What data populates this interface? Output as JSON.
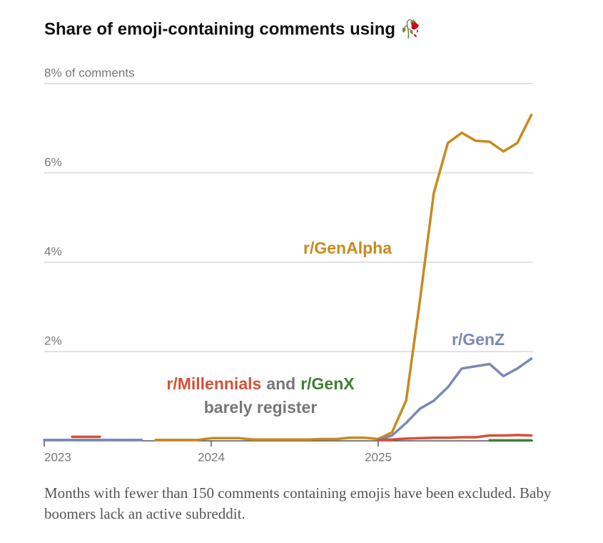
{
  "chart_data": {
    "type": "line",
    "title": "Share of emoji-containing comments using 🥀",
    "x": [
      2023,
      2023.083,
      2023.167,
      2023.25,
      2023.333,
      2023.417,
      2023.5,
      2023.583,
      2023.667,
      2023.75,
      2023.833,
      2023.917,
      2024,
      2024.083,
      2024.167,
      2024.25,
      2024.333,
      2024.417,
      2024.5,
      2024.583,
      2024.667,
      2024.75,
      2024.833,
      2024.917,
      2025,
      2025.083,
      2025.167,
      2025.25,
      2025.333,
      2025.417,
      2025.5,
      2025.583,
      2025.667,
      2025.75,
      2025.833,
      2025.917
    ],
    "xlim": [
      2023,
      2025.917
    ],
    "xticks": [
      2023,
      2024,
      2025
    ],
    "ylim": [
      0,
      8
    ],
    "yticks": [
      {
        "value": 2,
        "label": "2%"
      },
      {
        "value": 4,
        "label": "4%"
      },
      {
        "value": 6,
        "label": "6%"
      },
      {
        "value": 8,
        "label": "8% of comments"
      }
    ],
    "grid": true,
    "series": [
      {
        "name": "r/GenAlpha",
        "color": "#c88a1e",
        "values": [
          null,
          null,
          null,
          null,
          null,
          null,
          null,
          null,
          0.02,
          0.02,
          0.02,
          0.02,
          0.06,
          0.06,
          0.06,
          0.03,
          0.03,
          0.03,
          0.03,
          0.03,
          0.04,
          0.04,
          0.07,
          0.07,
          0.04,
          0.19,
          0.9,
          3.15,
          5.55,
          6.67,
          6.9,
          6.72,
          6.7,
          6.48,
          6.67,
          7.3
        ]
      },
      {
        "name": "r/GenZ",
        "color": "#7b8ab3",
        "values": [
          0.02,
          0.02,
          0.02,
          0.02,
          0.02,
          0.02,
          0.02,
          0.02,
          null,
          null,
          null,
          null,
          null,
          null,
          null,
          null,
          null,
          null,
          null,
          null,
          null,
          null,
          null,
          null,
          0.02,
          0.12,
          0.4,
          0.72,
          0.9,
          1.2,
          1.62,
          1.67,
          1.72,
          1.45,
          1.62,
          1.84
        ]
      },
      {
        "name": "r/Millennials",
        "color": "#d4503a",
        "values": [
          null,
          null,
          0.09,
          0.09,
          0.09,
          null,
          null,
          null,
          null,
          null,
          null,
          null,
          null,
          null,
          null,
          null,
          null,
          null,
          null,
          null,
          null,
          null,
          null,
          null,
          0.02,
          0.03,
          0.05,
          0.06,
          0.07,
          0.07,
          0.08,
          0.08,
          0.12,
          0.12,
          0.13,
          0.12
        ]
      },
      {
        "name": "r/GenX",
        "color": "#3f7f35",
        "values": [
          null,
          null,
          null,
          null,
          null,
          null,
          null,
          null,
          null,
          null,
          null,
          null,
          null,
          null,
          null,
          null,
          null,
          null,
          null,
          null,
          null,
          null,
          null,
          null,
          null,
          null,
          null,
          null,
          null,
          null,
          null,
          null,
          0.01,
          0.01,
          0.01,
          0.01
        ]
      }
    ],
    "annotations": [
      {
        "text": "r/GenAlpha",
        "color": "#c88a1e"
      },
      {
        "text": "r/GenZ",
        "color": "#7b8ab3"
      },
      {
        "text": "r/Millennials",
        "color": "#d4503a"
      },
      {
        "text": "and",
        "color": "#777777"
      },
      {
        "text": "r/GenX",
        "color": "#3f7f35"
      },
      {
        "text": "barely register",
        "color": "#777777"
      }
    ],
    "note": "Months with fewer than 150 comments containing emojis have been excluded. Baby boomers lack an active subreddit."
  }
}
